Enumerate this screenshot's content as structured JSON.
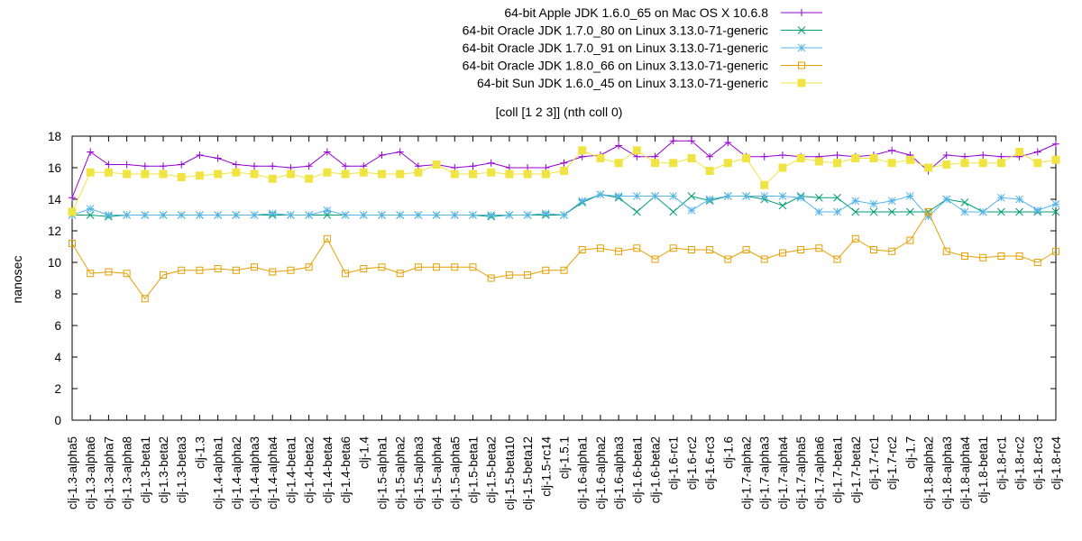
{
  "chart_data": {
    "type": "line",
    "title": "[coll [1 2 3]] (nth coll 0)",
    "xlabel": "",
    "ylabel": "nanosec",
    "ylim": [
      0,
      18
    ],
    "yticks": [
      "0",
      "2",
      "4",
      "6",
      "8",
      "10",
      "12",
      "14",
      "16",
      "18"
    ],
    "legend_position": "top-right",
    "grid": false,
    "categories": [
      "clj-1.3-alpha5",
      "clj-1.3-alpha6",
      "clj-1.3-alpha7",
      "clj-1.3-alpha8",
      "clj-1.3-beta1",
      "clj-1.3-beta2",
      "clj-1.3-beta3",
      "clj-1.3",
      "clj-1.4-alpha1",
      "clj-1.4-alpha2",
      "clj-1.4-alpha3",
      "clj-1.4-alpha4",
      "clj-1.4-beta1",
      "clj-1.4-beta2",
      "clj-1.4-beta4",
      "clj-1.4-beta6",
      "clj-1.4",
      "clj-1.5-alpha1",
      "clj-1.5-alpha2",
      "clj-1.5-alpha3",
      "clj-1.5-alpha4",
      "clj-1.5-alpha5",
      "clj-1.5-beta1",
      "clj-1.5-beta2",
      "clj-1.5-beta10",
      "clj-1.5-beta12",
      "clj-1.5-rc14",
      "clj-1.5.1",
      "clj-1.6-alpha1",
      "clj-1.6-alpha2",
      "clj-1.6-alpha3",
      "clj-1.6-beta1",
      "clj-1.6-beta2",
      "clj-1.6-rc1",
      "clj-1.6-rc2",
      "clj-1.6-rc3",
      "clj-1.6",
      "clj-1.7-alpha2",
      "clj-1.7-alpha3",
      "clj-1.7-alpha4",
      "clj-1.7-alpha5",
      "clj-1.7-alpha6",
      "clj-1.7-beta1",
      "clj-1.7-beta2",
      "clj-1.7-rc1",
      "clj-1.7-rc2",
      "clj-1.7",
      "clj-1.8-alpha2",
      "clj-1.8-alpha3",
      "clj-1.8-alpha4",
      "clj-1.8-beta1",
      "clj-1.8-rc1",
      "clj-1.8-rc2",
      "clj-1.8-rc3",
      "clj-1.8-rc4"
    ],
    "series": [
      {
        "name": "64-bit Apple JDK 1.6.0_65 on Mac OS X 10.6.8",
        "color": "#9400d3",
        "marker": "plus",
        "values": [
          14.1,
          17.0,
          16.2,
          16.2,
          16.1,
          16.1,
          16.2,
          16.8,
          16.6,
          16.2,
          16.1,
          16.1,
          16.0,
          16.1,
          17.0,
          16.1,
          16.1,
          16.8,
          17.0,
          16.1,
          16.2,
          16.0,
          16.1,
          16.3,
          16.0,
          16.0,
          16.0,
          16.3,
          16.7,
          16.8,
          17.4,
          16.7,
          16.7,
          17.7,
          17.7,
          16.7,
          17.6,
          16.7,
          16.7,
          16.8,
          16.7,
          16.7,
          16.8,
          16.7,
          16.8,
          17.1,
          16.8,
          15.8,
          16.8,
          16.7,
          16.8,
          16.7,
          16.7,
          17.0,
          17.5
        ]
      },
      {
        "name": "64-bit Oracle JDK 1.7.0_80 on Linux 3.13.0-71-generic",
        "color": "#009e73",
        "marker": "cross",
        "values": [
          13.0,
          13.0,
          12.9,
          13.0,
          13.0,
          13.0,
          13.0,
          13.0,
          13.0,
          13.0,
          13.0,
          13.0,
          13.0,
          13.0,
          13.0,
          13.0,
          13.0,
          13.0,
          13.0,
          13.0,
          13.0,
          13.0,
          13.0,
          12.9,
          13.0,
          13.0,
          13.0,
          13.0,
          13.8,
          14.3,
          14.1,
          13.2,
          14.2,
          13.2,
          14.2,
          13.9,
          14.2,
          14.2,
          14.0,
          13.6,
          14.2,
          14.1,
          14.1,
          13.2,
          13.2,
          13.2,
          13.2,
          13.2,
          14.0,
          13.8,
          13.2,
          13.2,
          13.2,
          13.2,
          13.2
        ]
      },
      {
        "name": "64-bit Oracle JDK 1.7.0_91 on Linux 3.13.0-71-generic",
        "color": "#56b4e9",
        "marker": "star",
        "values": [
          13.0,
          13.4,
          13.0,
          13.0,
          13.0,
          13.0,
          13.0,
          13.0,
          13.0,
          13.0,
          13.0,
          13.1,
          13.0,
          13.0,
          13.3,
          13.0,
          13.0,
          13.0,
          13.0,
          13.0,
          13.0,
          13.0,
          13.0,
          13.0,
          13.0,
          13.0,
          13.1,
          13.0,
          13.9,
          14.3,
          14.2,
          14.2,
          14.2,
          14.2,
          13.3,
          14.0,
          14.2,
          14.2,
          14.2,
          14.2,
          14.1,
          13.2,
          13.2,
          13.9,
          13.7,
          13.9,
          14.2,
          12.9,
          14.0,
          13.2,
          13.2,
          14.1,
          14.0,
          13.3,
          13.7
        ]
      },
      {
        "name": "64-bit Oracle JDK 1.8.0_66 on Linux 3.13.0-71-generic",
        "color": "#e69f00",
        "marker": "square",
        "values": [
          11.2,
          9.3,
          9.4,
          9.3,
          7.7,
          9.2,
          9.5,
          9.5,
          9.6,
          9.5,
          9.7,
          9.4,
          9.5,
          9.7,
          11.5,
          9.3,
          9.6,
          9.7,
          9.3,
          9.7,
          9.7,
          9.7,
          9.7,
          9.0,
          9.2,
          9.2,
          9.5,
          9.5,
          10.8,
          10.9,
          10.7,
          10.9,
          10.2,
          10.9,
          10.8,
          10.8,
          10.2,
          10.8,
          10.2,
          10.6,
          10.8,
          10.9,
          10.2,
          11.5,
          10.8,
          10.7,
          11.4,
          13.2,
          10.7,
          10.4,
          10.3,
          10.4,
          10.4,
          10.0,
          10.7
        ]
      },
      {
        "name": "64-bit Sun JDK 1.6.0_45 on Linux 3.13.0-71-generic",
        "color": "#f0e442",
        "marker": "filled-square",
        "values": [
          13.2,
          15.7,
          15.7,
          15.6,
          15.6,
          15.6,
          15.4,
          15.5,
          15.6,
          15.7,
          15.6,
          15.3,
          15.6,
          15.3,
          15.7,
          15.6,
          15.7,
          15.6,
          15.6,
          15.7,
          16.2,
          15.6,
          15.6,
          15.7,
          15.6,
          15.6,
          15.6,
          15.8,
          17.1,
          16.6,
          16.3,
          17.1,
          16.3,
          16.3,
          16.6,
          15.8,
          16.3,
          16.6,
          14.9,
          16.0,
          16.6,
          16.4,
          16.3,
          16.6,
          16.6,
          16.3,
          16.5,
          16.0,
          16.2,
          16.3,
          16.3,
          16.3,
          17.0,
          16.3,
          16.5
        ]
      }
    ]
  }
}
